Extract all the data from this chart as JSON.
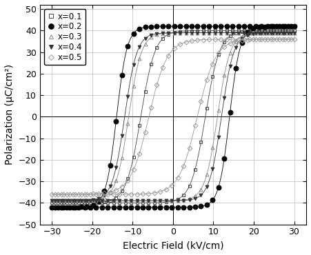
{
  "title": "",
  "xlabel": "Electric Field (kV/cm)",
  "ylabel": "Polarization (μC/cm²)",
  "xlim": [
    -33,
    33
  ],
  "ylim": [
    -50,
    52
  ],
  "xticks": [
    -30,
    -20,
    -10,
    0,
    10,
    20,
    30
  ],
  "yticks": [
    -50,
    -40,
    -30,
    -20,
    -10,
    0,
    10,
    20,
    30,
    40,
    50
  ],
  "series": [
    {
      "label": "x=0.1",
      "marker": "s",
      "markersize": 3.5,
      "fillstyle": "none",
      "Ec": 8.0,
      "Pr": 28.0,
      "Pmax": 40.0,
      "Emax": 30.0,
      "k_factor": 0.28,
      "color": "#444444"
    },
    {
      "label": "x=0.2",
      "marker": "o",
      "markersize": 5.0,
      "fillstyle": "full",
      "Ec": 14.0,
      "Pr": 37.0,
      "Pmax": 42.0,
      "Emax": 30.0,
      "k_factor": 0.38,
      "color": "#000000"
    },
    {
      "label": "x=0.3",
      "marker": "^",
      "markersize": 3.5,
      "fillstyle": "none",
      "Ec": 11.0,
      "Pr": 32.0,
      "Pmax": 39.0,
      "Emax": 30.0,
      "k_factor": 0.32,
      "color": "#888888"
    },
    {
      "label": "x=0.4",
      "marker": "v",
      "markersize": 3.5,
      "fillstyle": "full",
      "Ec": 12.0,
      "Pr": 33.0,
      "Pmax": 39.0,
      "Emax": 30.0,
      "k_factor": 0.33,
      "color": "#333333"
    },
    {
      "label": "x=0.5",
      "marker": "D",
      "markersize": 3.5,
      "fillstyle": "none",
      "Ec": 6.0,
      "Pr": 24.0,
      "Pmax": 36.0,
      "Emax": 30.0,
      "k_factor": 0.22,
      "color": "#999999"
    }
  ],
  "n_points": 500,
  "marker_step": 12,
  "linewidth": 0.6,
  "background_color": "#ffffff"
}
